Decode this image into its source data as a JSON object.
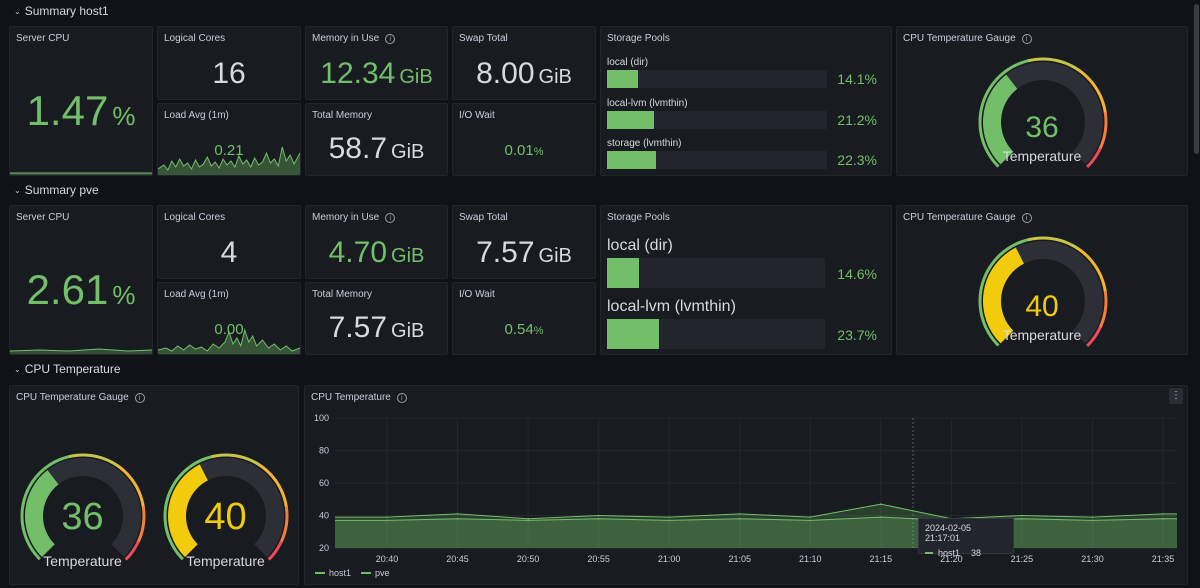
{
  "colors": {
    "accent": "#73bf69",
    "warn": "#f2cc0c",
    "text": "#d8d9e0",
    "bg": "#111217",
    "panel": "#181b1f"
  },
  "rows": [
    {
      "title": "Summary host1",
      "server_cpu": {
        "title": "Server CPU",
        "value": "1.47",
        "unit": "%"
      },
      "logical_cores": {
        "title": "Logical Cores",
        "value": "16"
      },
      "load_avg": {
        "title": "Load Avg (1m)",
        "value": "0.21"
      },
      "memory_in_use": {
        "title": "Memory in Use",
        "value": "12.34",
        "unit": "GiB"
      },
      "total_memory": {
        "title": "Total Memory",
        "value": "58.7",
        "unit": "GiB"
      },
      "swap_total": {
        "title": "Swap Total",
        "value": "8.00",
        "unit": "GiB"
      },
      "io_wait": {
        "title": "I/O Wait",
        "value": "0.01",
        "unit": "%"
      },
      "storage": {
        "title": "Storage Pools",
        "pools": [
          {
            "label": "local (dir)",
            "pct": "14.1%",
            "fill": 0.141
          },
          {
            "label": "local-lvm (lvmthin)",
            "pct": "21.2%",
            "fill": 0.212
          },
          {
            "label": "storage (lvmthin)",
            "pct": "22.3%",
            "fill": 0.223
          }
        ]
      },
      "gauge": {
        "title": "CPU Temperature Gauge",
        "value": "36",
        "level": 0.36,
        "label": "Temperature",
        "color": "#73bf69"
      }
    },
    {
      "title": "Summary pve",
      "server_cpu": {
        "title": "Server CPU",
        "value": "2.61",
        "unit": "%"
      },
      "logical_cores": {
        "title": "Logical Cores",
        "value": "4"
      },
      "load_avg": {
        "title": "Load Avg (1m)",
        "value": "0.00"
      },
      "memory_in_use": {
        "title": "Memory in Use",
        "value": "4.70",
        "unit": "GiB"
      },
      "total_memory": {
        "title": "Total Memory",
        "value": "7.57",
        "unit": "GiB"
      },
      "swap_total": {
        "title": "Swap Total",
        "value": "7.57",
        "unit": "GiB"
      },
      "io_wait": {
        "title": "I/O Wait",
        "value": "0.54",
        "unit": "%"
      },
      "storage": {
        "title": "Storage Pools",
        "pools": [
          {
            "label": "local (dir)",
            "pct": "14.6%",
            "fill": 0.146
          },
          {
            "label": "local-lvm (lvmthin)",
            "pct": "23.7%",
            "fill": 0.237
          }
        ]
      },
      "gauge": {
        "title": "CPU Temperature Gauge",
        "value": "40",
        "level": 0.4,
        "label": "Temperature",
        "color": "#f2cc0c"
      }
    }
  ],
  "cpu_temp_row": {
    "title": "CPU Temperature",
    "gauge_panel": {
      "title": "CPU Temperature Gauge",
      "gauges": [
        {
          "value": "36",
          "level": 0.36,
          "label": "Temperature",
          "color": "#73bf69"
        },
        {
          "value": "40",
          "level": 0.4,
          "label": "Temperature",
          "color": "#f2cc0c"
        }
      ]
    },
    "chart_panel": {
      "title": "CPU Temperature",
      "tooltip": {
        "time": "2024-02-05 21:17:01",
        "series": "host1",
        "value": "38"
      },
      "legend": [
        {
          "name": "host1",
          "color": "#73bf69"
        },
        {
          "name": "pve",
          "color": "#73bf69"
        }
      ]
    }
  },
  "chart_data": {
    "type": "line",
    "title": "CPU Temperature",
    "xlabel": "",
    "ylabel": "",
    "ylim": [
      20,
      100
    ],
    "yticks": [
      "100",
      "80",
      "60",
      "40",
      "20"
    ],
    "x": [
      "20:40",
      "20:45",
      "20:50",
      "20:55",
      "21:00",
      "21:05",
      "21:10",
      "21:15",
      "21:20",
      "21:25",
      "21:30",
      "21:35"
    ],
    "series": [
      {
        "name": "host1",
        "color": "#73bf69",
        "values": [
          39,
          41,
          38,
          40,
          39,
          41,
          39,
          47,
          38,
          40,
          39,
          41
        ]
      },
      {
        "name": "pve",
        "color": "#73bf69",
        "values": [
          37,
          38,
          37,
          38,
          37,
          38,
          37,
          39,
          37,
          38,
          37,
          38
        ]
      }
    ],
    "legend": "bottom-left",
    "grid": true
  }
}
